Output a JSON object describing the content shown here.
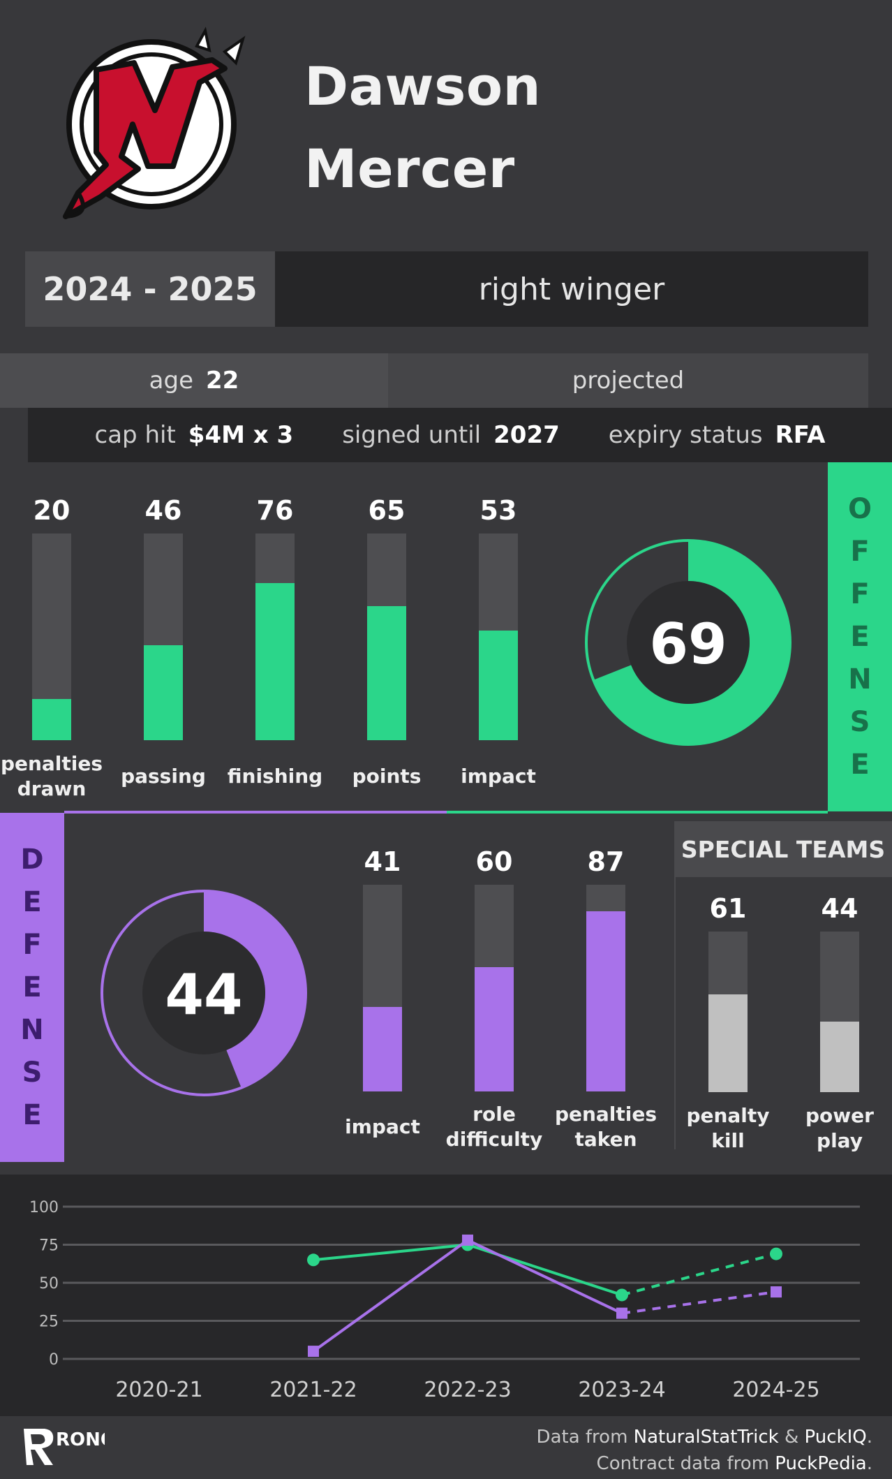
{
  "player": {
    "first_name": "Dawson",
    "last_name": "Mercer",
    "team_logo": "new-jersey-devils-logo"
  },
  "season": "2024 - 2025",
  "position": "right winger",
  "age_label": "age",
  "age_value": "22",
  "status": "projected",
  "contract": {
    "cap_hit_label": "cap hit",
    "cap_hit_value": "$4M x 3",
    "signed_label": "signed until",
    "signed_value": "2027",
    "expiry_label": "expiry status",
    "expiry_value": "RFA"
  },
  "offense_title": "OFFENSE",
  "defense_title": "DEFENSE",
  "special_teams_title": "SPECIAL TEAMS",
  "colors": {
    "offense": "#2bd68a",
    "defense": "#a872ea",
    "special": "#c0c0c0",
    "track": "#4e4e51"
  },
  "chart_data": [
    {
      "type": "bar",
      "title": "OFFENSE",
      "categories": [
        "penalties drawn",
        "passing",
        "finishing",
        "points",
        "impact"
      ],
      "values": [
        20,
        46,
        76,
        65,
        53
      ],
      "ylim": [
        0,
        100
      ]
    },
    {
      "type": "pie",
      "title": "OFFENSE",
      "value": 69,
      "display": "69",
      "max": 100
    },
    {
      "type": "pie",
      "title": "DEFENSE",
      "value": 44,
      "display": "44",
      "max": 100
    },
    {
      "type": "bar",
      "title": "DEFENSE",
      "categories": [
        "impact",
        "role difficulty",
        "penalties taken"
      ],
      "values": [
        41,
        60,
        87
      ],
      "ylim": [
        0,
        100
      ]
    },
    {
      "type": "bar",
      "title": "SPECIAL TEAMS",
      "categories": [
        "penalty kill",
        "power play"
      ],
      "values": [
        61,
        44
      ],
      "ylim": [
        0,
        100
      ]
    },
    {
      "type": "line",
      "categories": [
        "2020-21",
        "2021-22",
        "2022-23",
        "2023-24",
        "2024-25"
      ],
      "yticks": [
        "0",
        "25",
        "50",
        "75",
        "100"
      ],
      "ylim": [
        0,
        100
      ],
      "grid": true,
      "series": [
        {
          "name": "offense",
          "values": [
            null,
            65,
            75,
            42,
            69
          ],
          "projected_from_index": 3
        },
        {
          "name": "defense",
          "values": [
            null,
            5,
            78,
            30,
            44
          ],
          "projected_from_index": 3
        }
      ]
    }
  ],
  "footer": {
    "brand": "RONO",
    "credit1_prefix": "Data from ",
    "credit1_src1": "NaturalStatTrick",
    "credit1_amp": " & ",
    "credit1_src2": "PuckIQ",
    "credit1_end": ".",
    "credit2_prefix": "Contract data from ",
    "credit2_src": "PuckPedia",
    "credit2_end": "."
  }
}
